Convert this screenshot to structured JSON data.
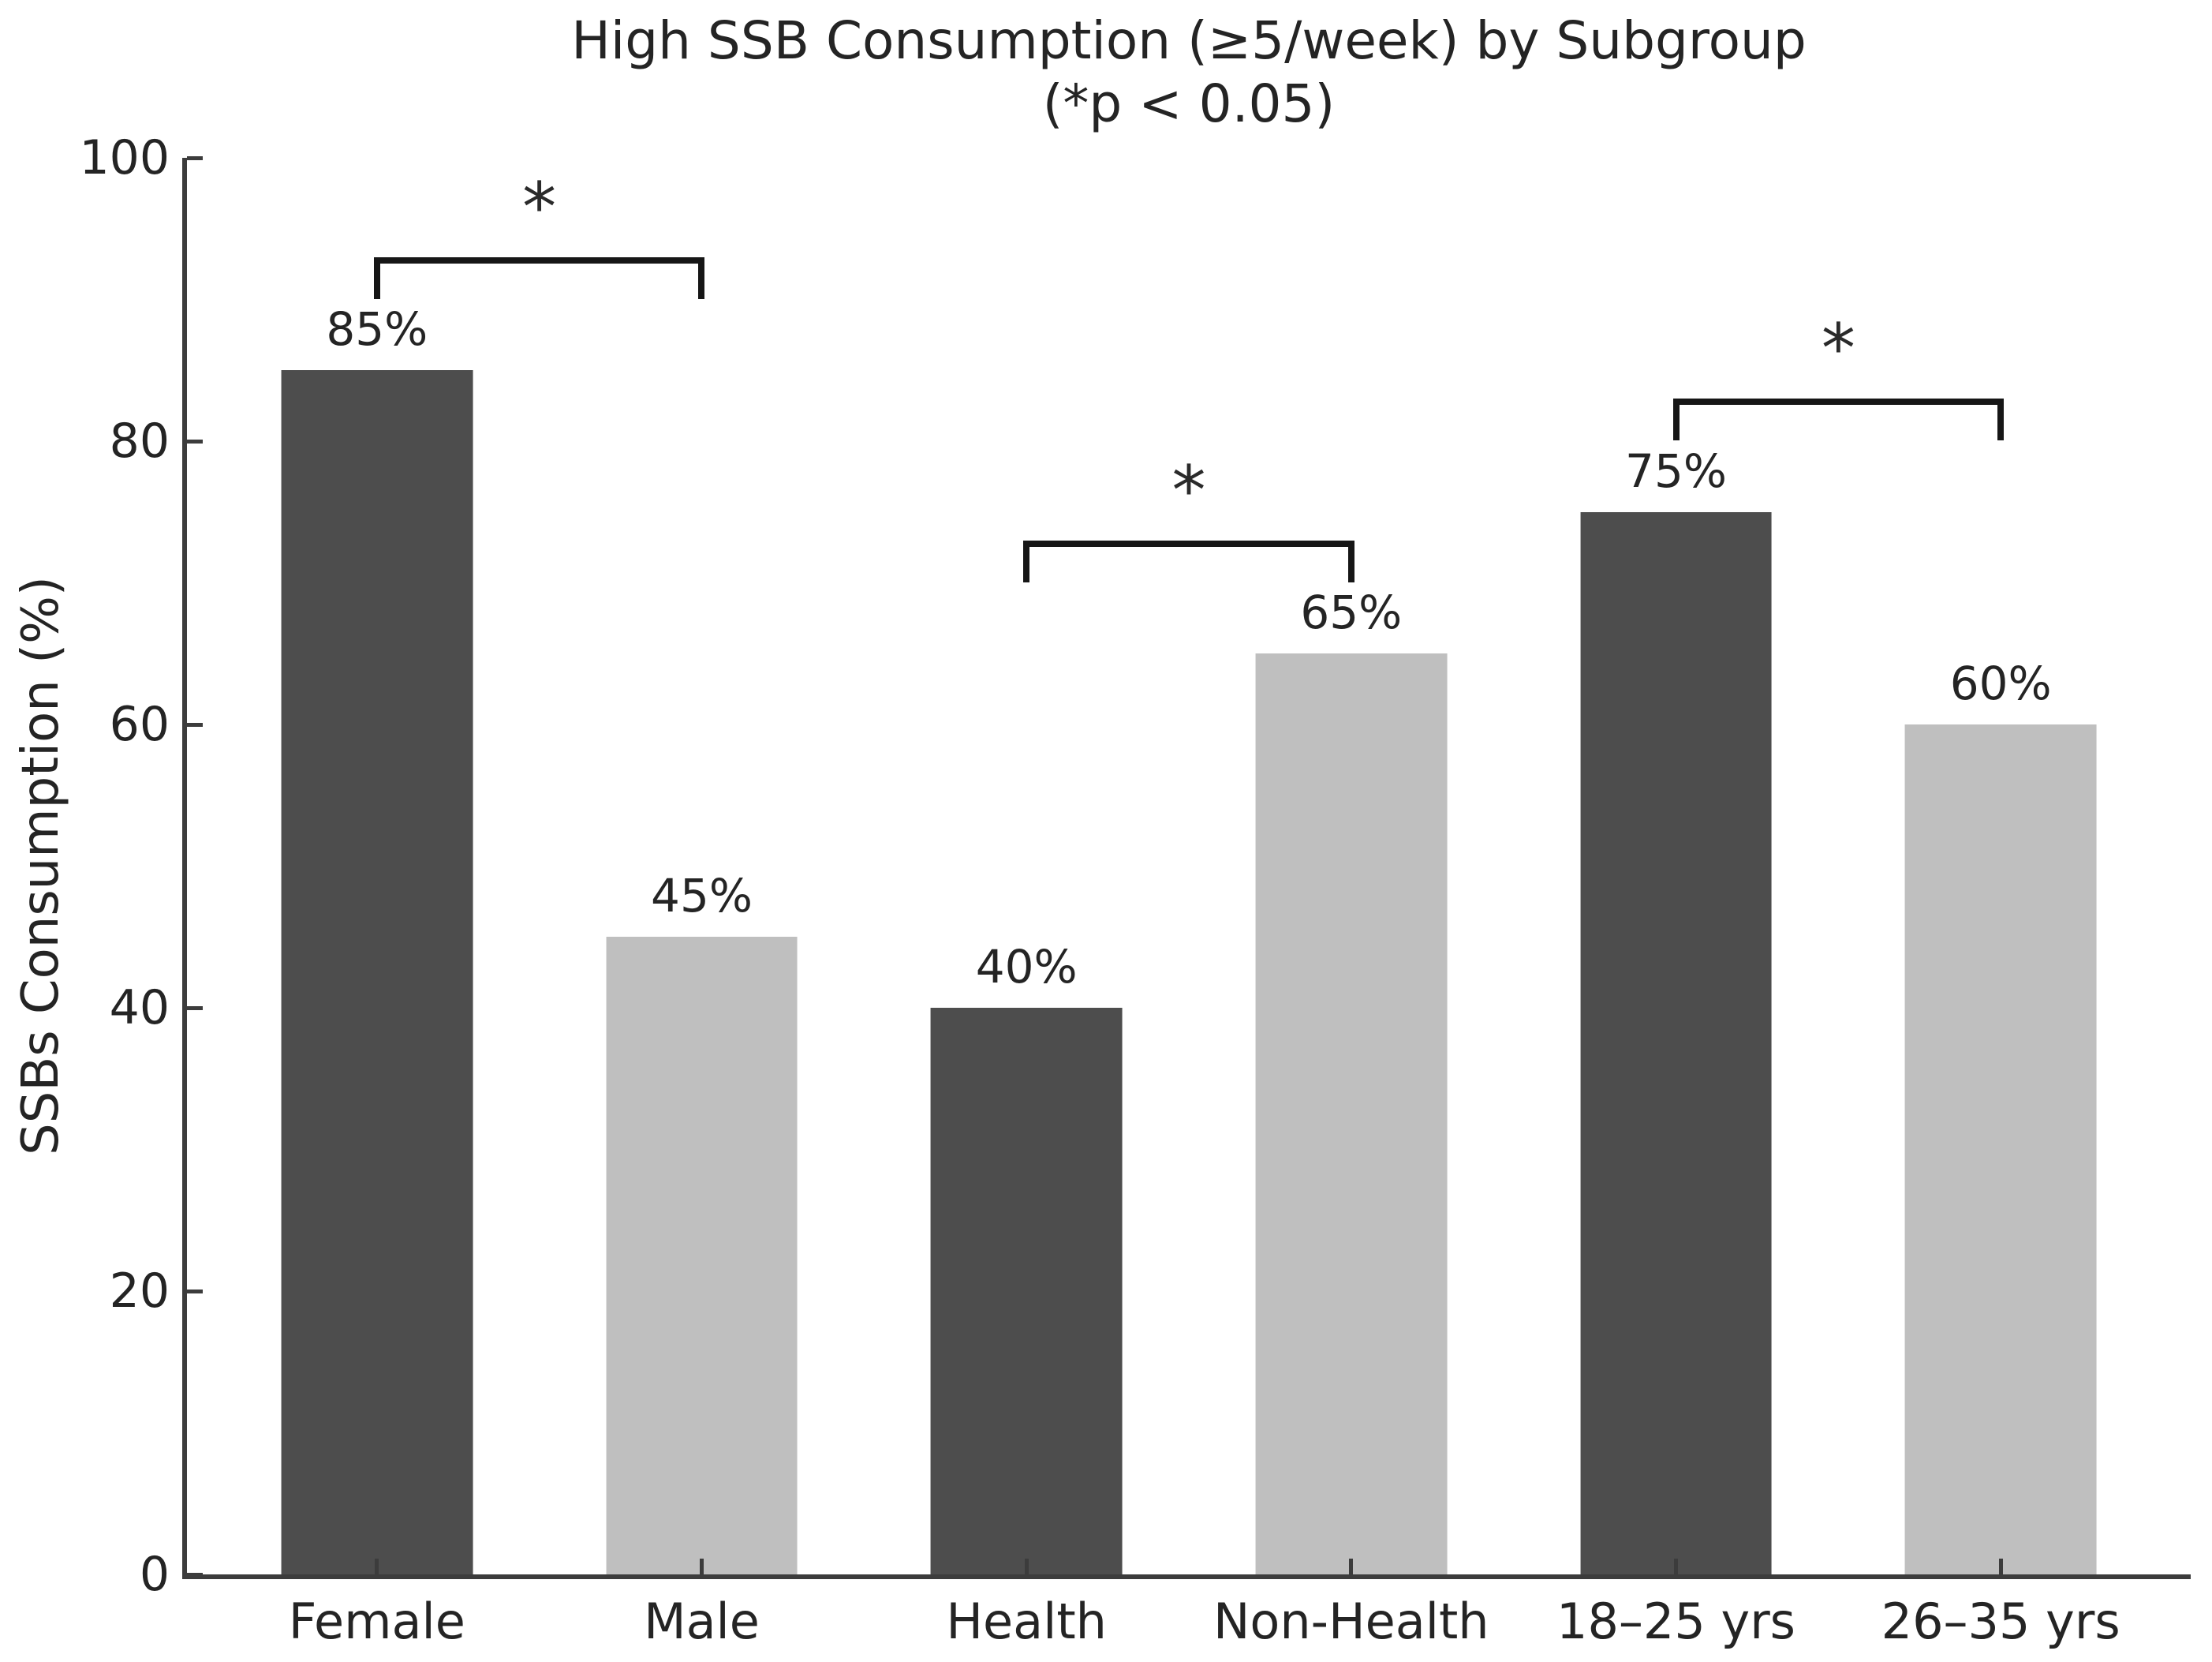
{
  "chart_data": {
    "type": "bar",
    "title": "High SSB Consumption (≥5/week) by Subgroup",
    "subtitle": "(*p < 0.05)",
    "xlabel": "",
    "ylabel": "SSBs Consumption (%)",
    "ylim": [
      0,
      100
    ],
    "yticks": [
      0,
      20,
      40,
      60,
      80,
      100
    ],
    "grid": false,
    "legend": "none",
    "categories": [
      "Female",
      "Male",
      "Health",
      "Non-Health",
      "18–25 yrs",
      "26–35 yrs"
    ],
    "values": [
      85,
      45,
      40,
      65,
      75,
      60
    ],
    "value_labels": [
      "85%",
      "45%",
      "40%",
      "65%",
      "75%",
      "60%"
    ],
    "bar_colors": [
      "#4d4d4d",
      "#bfbfbf",
      "#4d4d4d",
      "#bfbfbf",
      "#4d4d4d",
      "#bfbfbf"
    ],
    "significance_brackets": [
      {
        "from": 0,
        "to": 1,
        "y": 93,
        "tick_drop": 2.5,
        "label": "*"
      },
      {
        "from": 2,
        "to": 3,
        "y": 73,
        "tick_drop": 2.5,
        "label": "*"
      },
      {
        "from": 4,
        "to": 5,
        "y": 83,
        "tick_drop": 2.5,
        "label": "*"
      }
    ],
    "colors": {
      "dark_bar": "#4d4d4d",
      "light_bar": "#bfbfbf",
      "axis": "#3c3c3c",
      "bracket": "#161616",
      "text": "#242424",
      "background": "#ffffff"
    }
  }
}
